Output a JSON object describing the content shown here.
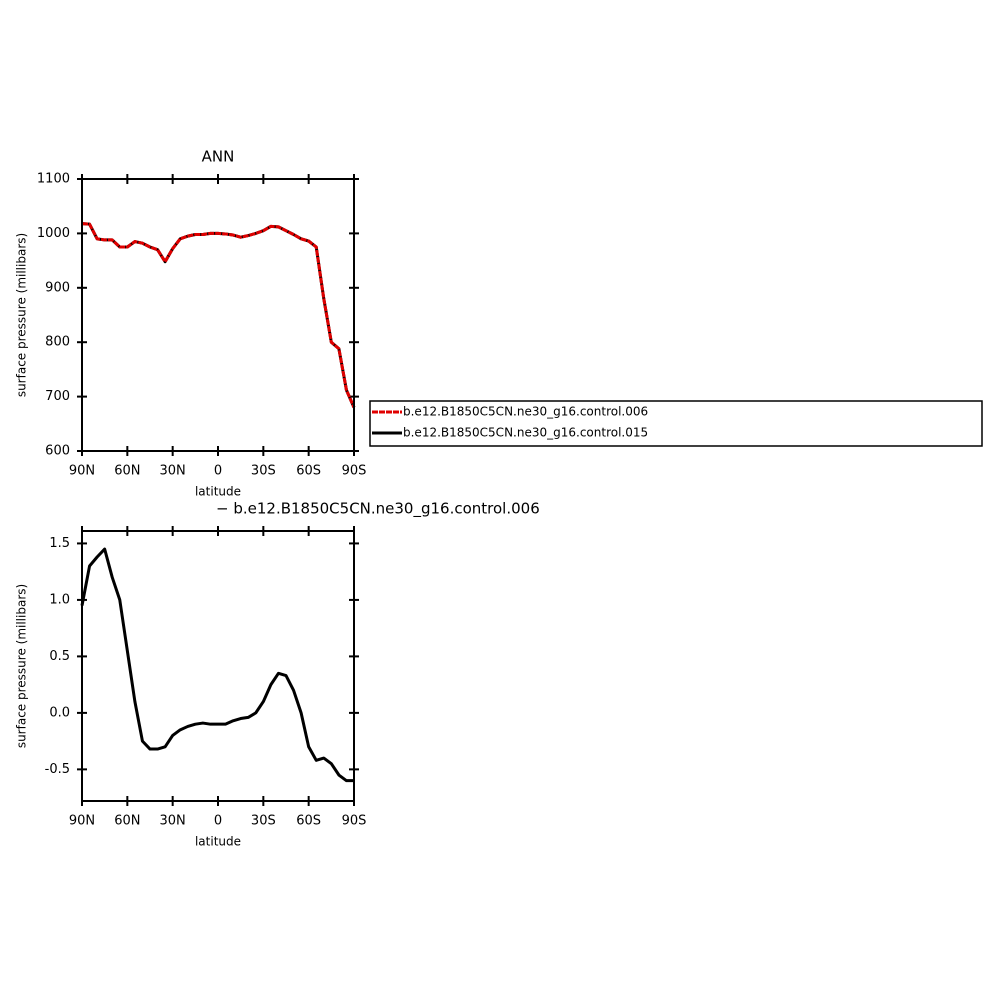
{
  "chart_data": [
    {
      "type": "line",
      "title": "ANN",
      "xlabel": "latitude",
      "ylabel": "surface pressure (millibars)",
      "x": [
        90,
        85,
        80,
        75,
        70,
        65,
        60,
        55,
        50,
        45,
        40,
        35,
        30,
        25,
        20,
        15,
        10,
        5,
        0,
        -5,
        -10,
        -15,
        -20,
        -25,
        -30,
        -35,
        -40,
        -45,
        -50,
        -55,
        -60,
        -65,
        -70,
        -75,
        -80,
        -85,
        -90
      ],
      "series": [
        {
          "name": "b.e12.B1850C5CN.ne30_g16.control.006",
          "color": "#e00000",
          "dash": true,
          "values": [
            1018,
            1017,
            990,
            988,
            988,
            975,
            975,
            985,
            982,
            975,
            970,
            948,
            972,
            990,
            995,
            998,
            998,
            1000,
            1000,
            999,
            997,
            993,
            996,
            1000,
            1005,
            1013,
            1012,
            1005,
            998,
            990,
            986,
            975,
            880,
            800,
            788,
            712,
            680
          ]
        },
        {
          "name": "b.e12.B1850C5CN.ne30_g16.control.015",
          "color": "#000000",
          "dash": false,
          "values": [
            1018,
            1017,
            990,
            988,
            988,
            975,
            975,
            985,
            982,
            975,
            970,
            948,
            972,
            990,
            995,
            998,
            998,
            1000,
            1000,
            999,
            997,
            993,
            996,
            1000,
            1005,
            1013,
            1012,
            1005,
            998,
            990,
            986,
            975,
            880,
            800,
            788,
            712,
            680
          ]
        }
      ],
      "xlim": [
        90,
        -90
      ],
      "xticks": [
        {
          "value": 90,
          "label": "90N"
        },
        {
          "value": 60,
          "label": "60N"
        },
        {
          "value": 30,
          "label": "30N"
        },
        0,
        {
          "value": -30,
          "label": "30S"
        },
        {
          "value": -60,
          "label": "60S"
        },
        {
          "value": -90,
          "label": "90S"
        }
      ],
      "ylim": [
        600,
        1100
      ],
      "yticks": [
        600,
        700,
        800,
        900,
        1000,
        1100
      ]
    },
    {
      "type": "line",
      "title": "− b.e12.B1850C5CN.ne30_g16.control.006",
      "xlabel": "latitude",
      "ylabel": "surface pressure (millibars)",
      "x": [
        90,
        85,
        80,
        75,
        70,
        65,
        60,
        55,
        50,
        45,
        40,
        35,
        30,
        25,
        20,
        15,
        10,
        5,
        0,
        -5,
        -10,
        -15,
        -20,
        -25,
        -30,
        -35,
        -40,
        -45,
        -50,
        -55,
        -60,
        -65,
        -70,
        -75,
        -80,
        -85,
        -90
      ],
      "series": [
        {
          "color": "#000000",
          "values": [
            0.95,
            1.3,
            1.38,
            1.45,
            1.2,
            1.0,
            0.55,
            0.1,
            -0.25,
            -0.32,
            -0.32,
            -0.3,
            -0.2,
            -0.15,
            -0.12,
            -0.1,
            -0.09,
            -0.1,
            -0.1,
            -0.1,
            -0.07,
            -0.05,
            -0.04,
            0.0,
            0.1,
            0.25,
            0.35,
            0.33,
            0.2,
            0.0,
            -0.3,
            -0.42,
            -0.4,
            -0.45,
            -0.55,
            -0.6,
            -0.6
          ]
        }
      ],
      "xlim": [
        90,
        -90
      ],
      "xticks": [
        {
          "value": 90,
          "label": "90N"
        },
        {
          "value": 60,
          "label": "60N"
        },
        {
          "value": 30,
          "label": "30N"
        },
        0,
        {
          "value": -30,
          "label": "30S"
        },
        {
          "value": -60,
          "label": "60S"
        },
        {
          "value": -90,
          "label": "90S"
        }
      ],
      "ylim": [
        -0.78,
        1.61
      ],
      "yticks": [
        {
          "value": -0.5,
          "label": "-0.5"
        },
        {
          "value": 0,
          "label": "0.0"
        },
        0.5,
        {
          "value": 1,
          "label": "1.0"
        },
        1.5
      ]
    }
  ]
}
